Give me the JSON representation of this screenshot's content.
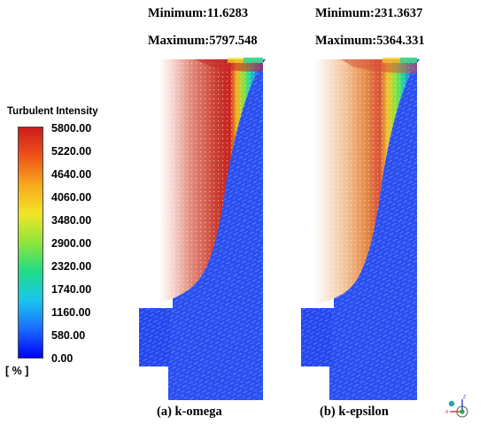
{
  "panel_a": {
    "minimum": "Minimum:11.6283",
    "maximum": "Maximum:5797.548",
    "caption": "(a) k-omega"
  },
  "panel_b": {
    "minimum": "Minimum:231.3637",
    "maximum": "Maximum:5364.331",
    "caption": "(b) k-epsilon"
  },
  "legend": {
    "title": "Turbulent Intensity",
    "unit": "[ % ]",
    "ticks": [
      "5800.00",
      "5220.00",
      "4640.00",
      "4060.00",
      "3480.00",
      "2900.00",
      "2320.00",
      "1740.00",
      "1160.00",
      "580.00",
      "0.00"
    ],
    "range": [
      0,
      5800
    ],
    "colormap": [
      "#0000ff",
      "#1a6cff",
      "#19c6ee",
      "#21dc86",
      "#8ee53b",
      "#f2e627",
      "#f8a91f",
      "#ee5318",
      "#cc1c1c"
    ]
  },
  "axis_triad": {
    "icon": "xyz-axis-triad-icon"
  }
}
